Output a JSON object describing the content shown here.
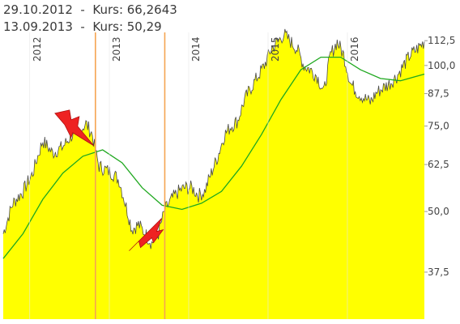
{
  "header": {
    "line1": "29.10.2012  -  Kurs: 66,2643",
    "line2": "13.09.2013  -  Kurs: 50,29"
  },
  "chart_data": {
    "type": "area",
    "title": "",
    "xlabel": "",
    "ylabel": "",
    "x_range": [
      "2011-09-01",
      "2016-12-20"
    ],
    "ylim": [
      30,
      117
    ],
    "y_scale": "log",
    "y_ticks": [
      {
        "value": 37.5,
        "label": "37,5"
      },
      {
        "value": 50.0,
        "label": "50,0"
      },
      {
        "value": 62.5,
        "label": "62,5"
      },
      {
        "value": 75.0,
        "label": "75,0"
      },
      {
        "value": 87.5,
        "label": "87,5"
      },
      {
        "value": 100.0,
        "label": "100,0"
      },
      {
        "value": 112.5,
        "label": "112,5"
      }
    ],
    "year_markers": [
      {
        "date": "2012-01-01",
        "label": "2012"
      },
      {
        "date": "2013-01-01",
        "label": "2013"
      },
      {
        "date": "2014-01-01",
        "label": "2014"
      },
      {
        "date": "2015-01-01",
        "label": "2015"
      },
      {
        "date": "2016-01-01",
        "label": "2016"
      }
    ],
    "markers": [
      {
        "date": "2012-10-29",
        "value": 66.2643,
        "label": "29.10.2012",
        "signal": "sell"
      },
      {
        "date": "2013-09-13",
        "value": 50.29,
        "label": "13.09.2013",
        "signal": "buy"
      }
    ],
    "series": [
      {
        "role": "price",
        "points": [
          [
            "2011-09-01",
            45
          ],
          [
            "2011-10-15",
            52
          ],
          [
            "2011-12-01",
            55
          ],
          [
            "2012-01-15",
            60
          ],
          [
            "2012-03-01",
            70
          ],
          [
            "2012-04-15",
            66
          ],
          [
            "2012-06-01",
            68
          ],
          [
            "2012-07-15",
            72
          ],
          [
            "2012-08-15",
            73
          ],
          [
            "2012-09-15",
            76
          ],
          [
            "2012-10-15",
            72
          ],
          [
            "2012-10-29",
            66.26
          ],
          [
            "2012-11-15",
            62
          ],
          [
            "2012-12-15",
            61
          ],
          [
            "2013-01-15",
            60
          ],
          [
            "2013-02-15",
            58
          ],
          [
            "2013-03-15",
            52
          ],
          [
            "2013-04-15",
            46
          ],
          [
            "2013-05-15",
            47
          ],
          [
            "2013-06-15",
            45
          ],
          [
            "2013-07-15",
            43
          ],
          [
            "2013-08-15",
            45
          ],
          [
            "2013-09-13",
            50.29
          ],
          [
            "2013-10-15",
            53
          ],
          [
            "2013-11-15",
            55
          ],
          [
            "2013-12-15",
            56
          ],
          [
            "2014-01-15",
            56
          ],
          [
            "2014-02-15",
            54
          ],
          [
            "2014-03-15",
            55
          ],
          [
            "2014-04-15",
            60
          ],
          [
            "2014-05-15",
            65
          ],
          [
            "2014-06-15",
            72
          ],
          [
            "2014-07-15",
            75
          ],
          [
            "2014-08-15",
            77
          ],
          [
            "2014-09-15",
            85
          ],
          [
            "2014-10-15",
            90
          ],
          [
            "2014-11-15",
            95
          ],
          [
            "2014-12-15",
            100
          ],
          [
            "2015-01-15",
            108
          ],
          [
            "2015-02-15",
            112
          ],
          [
            "2015-03-15",
            116
          ],
          [
            "2015-04-15",
            112
          ],
          [
            "2015-05-15",
            108
          ],
          [
            "2015-06-15",
            100
          ],
          [
            "2015-07-15",
            98
          ],
          [
            "2015-08-15",
            95
          ],
          [
            "2015-09-15",
            88
          ],
          [
            "2015-10-15",
            105
          ],
          [
            "2015-11-15",
            112
          ],
          [
            "2015-12-15",
            105
          ],
          [
            "2016-01-15",
            92
          ],
          [
            "2016-02-15",
            88
          ],
          [
            "2016-03-15",
            86
          ],
          [
            "2016-04-15",
            84
          ],
          [
            "2016-05-15",
            88
          ],
          [
            "2016-06-15",
            90
          ],
          [
            "2016-07-15",
            92
          ],
          [
            "2016-08-15",
            95
          ],
          [
            "2016-09-15",
            100
          ],
          [
            "2016-10-15",
            105
          ],
          [
            "2016-11-15",
            108
          ],
          [
            "2016-12-20",
            112
          ]
        ],
        "color": "#4a4a4a",
        "fill": "#ffff00"
      },
      {
        "role": "moving-average",
        "points": [
          [
            "2011-09-01",
            40
          ],
          [
            "2011-12-01",
            45
          ],
          [
            "2012-03-01",
            53
          ],
          [
            "2012-06-01",
            60
          ],
          [
            "2012-09-01",
            65
          ],
          [
            "2012-12-01",
            67
          ],
          [
            "2013-03-01",
            63
          ],
          [
            "2013-06-01",
            56
          ],
          [
            "2013-09-01",
            51.5
          ],
          [
            "2013-12-01",
            50.5
          ],
          [
            "2014-03-01",
            52
          ],
          [
            "2014-06-01",
            55
          ],
          [
            "2014-09-01",
            62
          ],
          [
            "2014-12-01",
            72
          ],
          [
            "2015-03-01",
            85
          ],
          [
            "2015-06-01",
            98
          ],
          [
            "2015-09-01",
            104
          ],
          [
            "2015-12-01",
            104
          ],
          [
            "2016-03-01",
            98
          ],
          [
            "2016-06-01",
            94
          ],
          [
            "2016-09-01",
            93
          ],
          [
            "2016-12-20",
            96
          ]
        ],
        "color": "#1fa81f"
      }
    ],
    "colors": {
      "marker_line": "#f5a552",
      "signal_bolt": "#ee2222",
      "axis_text": "#444444"
    }
  }
}
